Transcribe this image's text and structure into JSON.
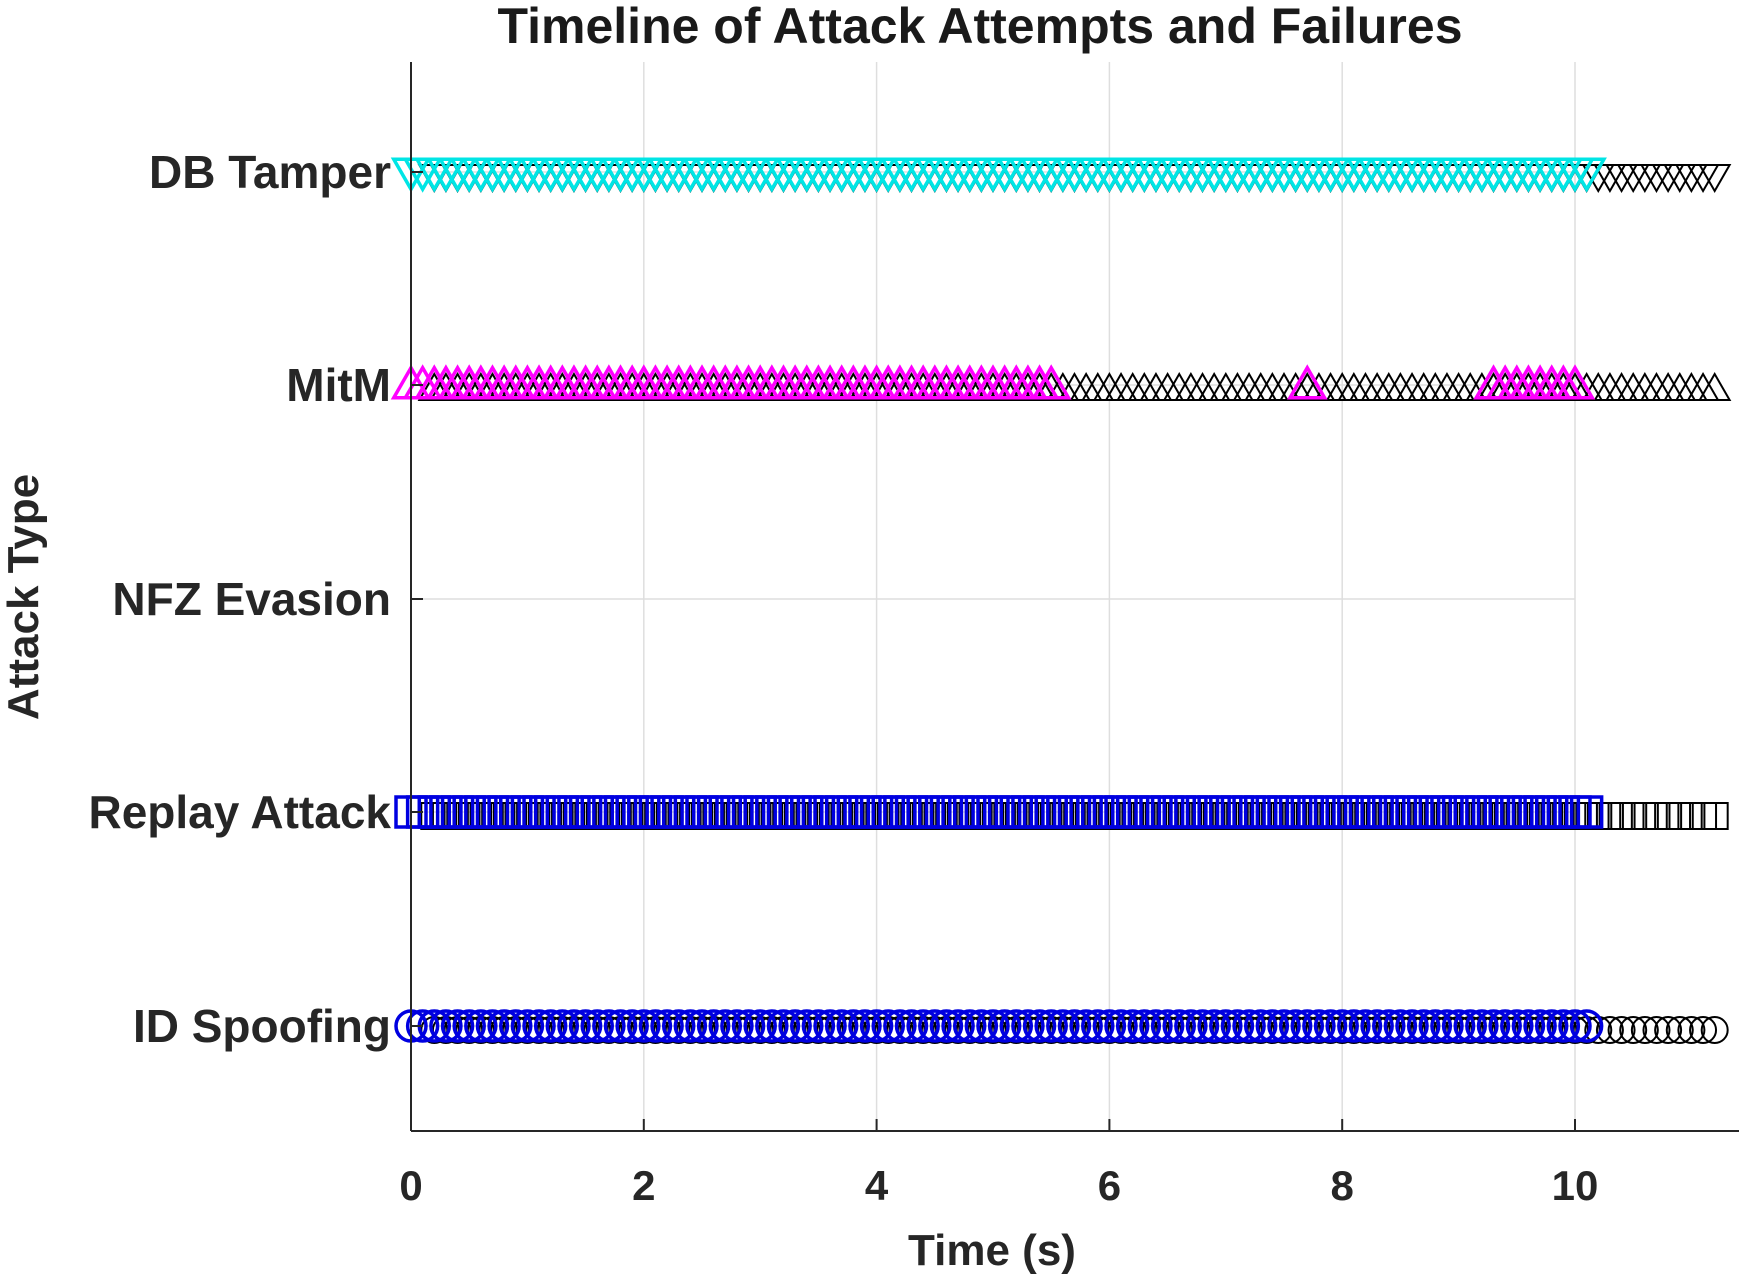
{
  "chart_data": {
    "type": "scatter",
    "title": "Timeline of Attack Attempts and Failures",
    "xlabel": "Time (s)",
    "ylabel": "Attack Type",
    "xlim": [
      0,
      11.5
    ],
    "xticks": [
      0,
      2,
      4,
      6,
      8,
      10
    ],
    "xtick_labels": [
      "0",
      "2",
      "4",
      "6",
      "8",
      "10"
    ],
    "categories": [
      "ID Spoofing",
      "Replay Attack",
      "NFZ Evasion",
      "MitM",
      "DB Tamper"
    ],
    "grid": true,
    "colors": {
      "id_spoofing": "#0000e0",
      "replay_attack": "#0000e0",
      "mitm": "#ff00ff",
      "db_tamper": "#00e5e5",
      "failure": "#000000"
    },
    "series": [
      {
        "category": "ID Spoofing",
        "marker": "circle",
        "color": "#0000e0",
        "attempt_range": [
          0,
          10.1
        ],
        "attempt_step": 0.1,
        "failure_range": [
          0.2,
          11.4
        ],
        "failure_step": 0.1
      },
      {
        "category": "Replay Attack",
        "marker": "square",
        "color": "#0000e0",
        "attempt_range": [
          0,
          10.1
        ],
        "attempt_step": 0.1,
        "failure_range": [
          0.2,
          11.4
        ],
        "failure_step": 0.1
      },
      {
        "category": "NFZ Evasion",
        "marker": "none",
        "color": "#000000",
        "attempt_range": null,
        "failure_range": null
      },
      {
        "category": "MitM",
        "marker": "triangle-up",
        "color": "#ff00ff",
        "attempt_segments": [
          [
            0,
            5.5
          ],
          [
            7.7,
            7.7
          ],
          [
            9.3,
            10.0
          ]
        ],
        "attempt_step": 0.1,
        "failure_range": [
          0.2,
          11.4
        ],
        "failure_step": 0.1
      },
      {
        "category": "DB Tamper",
        "marker": "triangle-down",
        "color": "#00e5e5",
        "attempt_range": [
          0,
          10.1
        ],
        "attempt_step": 0.1,
        "failure_range": [
          0.2,
          11.4
        ],
        "failure_step": 0.1
      }
    ]
  }
}
